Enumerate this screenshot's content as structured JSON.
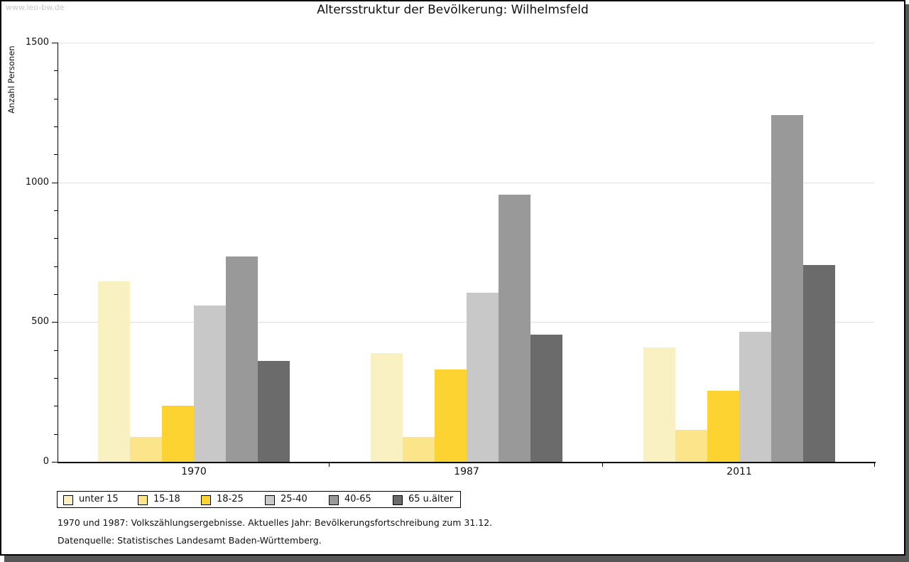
{
  "watermark": "www.leo-bw.de",
  "header": {
    "title": "Altersstruktur der Bevölkerung: Wilhelmsfeld"
  },
  "footer": {
    "line1": "1970 und 1987: Volkszählungsergebnisse. Aktuelles Jahr: Bevölkerungsfortschreibung zum 31.12.",
    "line2": "Datenquelle: Statistisches Landesamt Baden-Württemberg."
  },
  "chart_data": {
    "type": "bar",
    "title": "Altersstruktur der Bevölkerung: Wilhelmsfeld",
    "xlabel": "",
    "ylabel": "Anzahl Personen",
    "ylim": [
      0,
      1500
    ],
    "y_major_ticks": [
      0,
      500,
      1000,
      1500
    ],
    "y_minor_step": 100,
    "grid": "horizontal gridlines at 500/1000/1500",
    "legend_position": "bottom-left",
    "categories": [
      "1970",
      "1987",
      "2011"
    ],
    "series": [
      {
        "name": "unter 15",
        "color": "#FAF1C3",
        "values": [
          645,
          390,
          410
        ]
      },
      {
        "name": "15-18",
        "color": "#FBE48A",
        "values": [
          90,
          90,
          115
        ]
      },
      {
        "name": "18-25",
        "color": "#FCD330",
        "values": [
          200,
          330,
          255
        ]
      },
      {
        "name": "25-40",
        "color": "#C8C8C8",
        "values": [
          560,
          605,
          465
        ]
      },
      {
        "name": "40-65",
        "color": "#999999",
        "values": [
          735,
          955,
          1240
        ]
      },
      {
        "name": "65 u.älter",
        "color": "#6B6B6B",
        "values": [
          360,
          455,
          705
        ]
      }
    ]
  },
  "colors": {
    "axis": "#000000",
    "gridline": "#E2E2E2",
    "watermark": "#C9C9C9",
    "shadow": "#565656",
    "text": "#111111"
  }
}
